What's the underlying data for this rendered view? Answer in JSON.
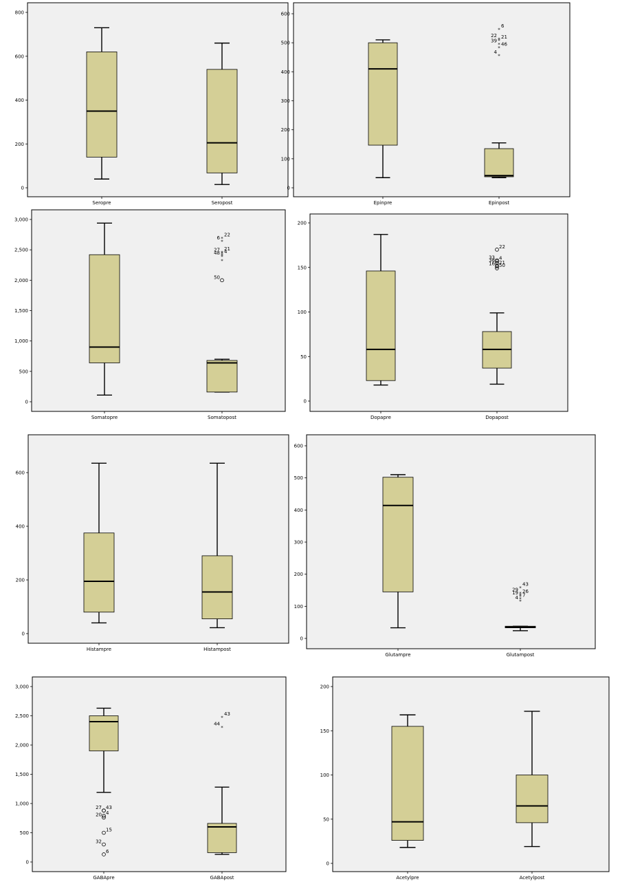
{
  "colors": {
    "box_fill": "#d4cf96",
    "plot_background": "#f0f0f0",
    "outlier_stroke": "#000000"
  },
  "chart_data": [
    {
      "type": "boxplot",
      "ylim": [
        -20,
        830
      ],
      "yticks": [
        0,
        200,
        400,
        600,
        800
      ],
      "tick_labels": [
        "0",
        "200",
        "400",
        "600",
        "800"
      ],
      "series": [
        {
          "category": "Seropre",
          "min": 40,
          "q1": 140,
          "median": 350,
          "q3": 620,
          "max": 730,
          "outliers": []
        },
        {
          "category": "Seropost",
          "min": 15,
          "q1": 68,
          "median": 205,
          "q3": 540,
          "max": 660,
          "outliers": []
        }
      ]
    },
    {
      "type": "boxplot",
      "ylim": [
        -15,
        625
      ],
      "yticks": [
        0,
        100,
        200,
        300,
        400,
        500,
        600
      ],
      "tick_labels": [
        "0",
        "100",
        "200",
        "300",
        "400",
        "500",
        "600"
      ],
      "series": [
        {
          "category": "Epinpre",
          "min": 35,
          "q1": 147,
          "median": 410,
          "q3": 500,
          "max": 510,
          "outliers": []
        },
        {
          "category": "Epinpost",
          "min": 35,
          "q1": 38,
          "median": 42,
          "q3": 135,
          "max": 155,
          "outliers": [
            {
              "value": 548,
              "label": "6",
              "marker": "star"
            },
            {
              "value": 515,
              "label": "22",
              "marker": "star"
            },
            {
              "value": 510,
              "label": "21",
              "marker": "star"
            },
            {
              "value": 497,
              "label": "39",
              "marker": "star"
            },
            {
              "value": 485,
              "label": "46",
              "marker": "star"
            },
            {
              "value": 458,
              "label": "4",
              "marker": "star"
            }
          ]
        }
      ]
    },
    {
      "type": "boxplot",
      "ylim": [
        -100,
        3030
      ],
      "yticks": [
        0,
        500,
        1000,
        1500,
        2000,
        2500,
        3000
      ],
      "tick_labels": [
        "0",
        "500",
        "1,000",
        "1,500",
        "2,000",
        "2,500",
        "3,000"
      ],
      "series": [
        {
          "category": "Somatopre",
          "min": 110,
          "q1": 640,
          "median": 900,
          "q3": 2420,
          "max": 2940,
          "outliers": []
        },
        {
          "category": "Somatopost",
          "min": 160,
          "q1": 160,
          "median": 640,
          "q3": 680,
          "max": 700,
          "outliers": [
            {
              "value": 2700,
              "label": "22",
              "marker": "star"
            },
            {
              "value": 2650,
              "label": "6",
              "marker": "star"
            },
            {
              "value": 2470,
              "label": "21",
              "marker": "star"
            },
            {
              "value": 2450,
              "label": "27",
              "marker": "star"
            },
            {
              "value": 2420,
              "label": "4",
              "marker": "star"
            },
            {
              "value": 2400,
              "label": "48",
              "marker": "star"
            },
            {
              "value": 2330,
              "label": "",
              "marker": "star"
            },
            {
              "value": 2000,
              "label": "50",
              "marker": "circle"
            }
          ]
        }
      ]
    },
    {
      "type": "boxplot",
      "ylim": [
        -5,
        210
      ],
      "yticks": [
        0,
        50,
        100,
        150,
        200
      ],
      "tick_labels": [
        "0",
        "50",
        "100",
        "150",
        "200"
      ],
      "series": [
        {
          "category": "Dopapre",
          "min": 18,
          "q1": 23,
          "median": 58,
          "q3": 146,
          "max": 187,
          "outliers": []
        },
        {
          "category": "Dopapost",
          "min": 19,
          "q1": 37,
          "median": 58,
          "q3": 78,
          "max": 99,
          "outliers": [
            {
              "value": 170,
              "label": "22",
              "marker": "circle"
            },
            {
              "value": 158,
              "label": "33",
              "marker": "circle"
            },
            {
              "value": 157,
              "label": "4",
              "marker": "circle"
            },
            {
              "value": 155,
              "label": "38",
              "marker": "circle"
            },
            {
              "value": 152,
              "label": "21",
              "marker": "circle"
            },
            {
              "value": 151,
              "label": "16",
              "marker": "circle"
            },
            {
              "value": 149,
              "label": "50",
              "marker": "circle"
            }
          ]
        }
      ]
    },
    {
      "type": "boxplot",
      "ylim": [
        -40,
        710
      ],
      "yticks": [
        0,
        200,
        400,
        600
      ],
      "tick_labels": [
        "0",
        "200",
        "400",
        "600"
      ],
      "series": [
        {
          "category": "Histampre",
          "min": 40,
          "q1": 80,
          "median": 195,
          "q3": 375,
          "max": 635,
          "outliers": []
        },
        {
          "category": "Histampost",
          "min": 22,
          "q1": 55,
          "median": 155,
          "q3": 290,
          "max": 635,
          "outliers": []
        }
      ]
    },
    {
      "type": "boxplot",
      "ylim": [
        -25,
        605
      ],
      "yticks": [
        0,
        100,
        200,
        300,
        400,
        500,
        600
      ],
      "tick_labels": [
        "0",
        "100",
        "200",
        "300",
        "400",
        "500",
        "600"
      ],
      "series": [
        {
          "category": "Glutampre",
          "min": 33,
          "q1": 145,
          "median": 414,
          "q3": 502,
          "max": 510,
          "outliers": []
        },
        {
          "category": "Glutampost",
          "min": 24,
          "q1": 33,
          "median": 35,
          "q3": 38,
          "max": 38,
          "outliers": [
            {
              "value": 160,
              "label": "43",
              "marker": "star"
            },
            {
              "value": 143,
              "label": "29",
              "marker": "star"
            },
            {
              "value": 137,
              "label": "26",
              "marker": "star"
            },
            {
              "value": 133,
              "label": "19",
              "marker": "star"
            },
            {
              "value": 125,
              "label": "7",
              "marker": "star"
            },
            {
              "value": 118,
              "label": "4",
              "marker": "star"
            }
          ]
        }
      ]
    },
    {
      "type": "boxplot",
      "ylim": [
        -70,
        3040
      ],
      "yticks": [
        0,
        500,
        1000,
        1500,
        2000,
        2500,
        3000
      ],
      "tick_labels": [
        "0",
        "500",
        "1,000",
        "1,500",
        "2,000",
        "2,500",
        "3,000"
      ],
      "series": [
        {
          "category": "GABApre",
          "min": 1190,
          "q1": 1900,
          "median": 2400,
          "q3": 2500,
          "max": 2630,
          "outliers": [
            {
              "value": 880,
              "label": "43",
              "marker": "circle"
            },
            {
              "value": 880,
              "label": "27",
              "marker": "circle"
            },
            {
              "value": 790,
              "label": "4",
              "marker": "circle"
            },
            {
              "value": 760,
              "label": "20",
              "marker": "circle"
            },
            {
              "value": 500,
              "label": "15",
              "marker": "circle"
            },
            {
              "value": 300,
              "label": "32",
              "marker": "circle"
            },
            {
              "value": 130,
              "label": "6",
              "marker": "circle"
            }
          ]
        },
        {
          "category": "GABApost",
          "min": 130,
          "q1": 160,
          "median": 600,
          "q3": 660,
          "max": 1280,
          "outliers": [
            {
              "value": 2480,
              "label": "43",
              "marker": "star"
            },
            {
              "value": 2310,
              "label": "44",
              "marker": "star"
            }
          ]
        }
      ]
    },
    {
      "type": "boxplot",
      "ylim": [
        -10,
        210
      ],
      "yticks": [
        0,
        50,
        100,
        150,
        200
      ],
      "tick_labels": [
        "0",
        "50",
        "100",
        "150",
        "200"
      ],
      "series": [
        {
          "category": "Acetylpre",
          "min": 18,
          "q1": 26,
          "median": 47,
          "q3": 155,
          "max": 168,
          "outliers": []
        },
        {
          "category": "Acetylpost",
          "min": 19,
          "q1": 46,
          "median": 65,
          "q3": 100,
          "max": 172,
          "outliers": []
        }
      ]
    }
  ]
}
